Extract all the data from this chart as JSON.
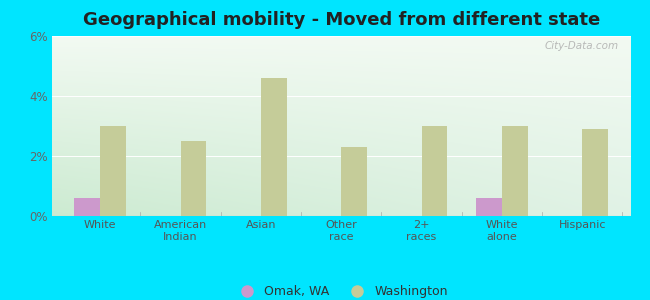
{
  "title": "Geographical mobility - Moved from different state",
  "categories": [
    "White",
    "American\nIndian",
    "Asian",
    "Other\nrace",
    "2+\nraces",
    "White\nalone",
    "Hispanic"
  ],
  "omak_values": [
    0.6,
    0.0,
    0.0,
    0.0,
    0.0,
    0.6,
    0.0
  ],
  "washington_values": [
    3.0,
    2.5,
    4.6,
    2.3,
    3.0,
    3.0,
    2.9
  ],
  "omak_color": "#cc99cc",
  "washington_color": "#c5cc99",
  "ylim": [
    0,
    6
  ],
  "yticks": [
    0,
    2,
    4,
    6
  ],
  "ytick_labels": [
    "0%",
    "2%",
    "4%",
    "6%"
  ],
  "background_outer": "#00e5ff",
  "title_fontsize": 13,
  "legend_omak": "Omak, WA",
  "legend_washington": "Washington",
  "bar_width": 0.32,
  "watermark": "City-Data.com"
}
